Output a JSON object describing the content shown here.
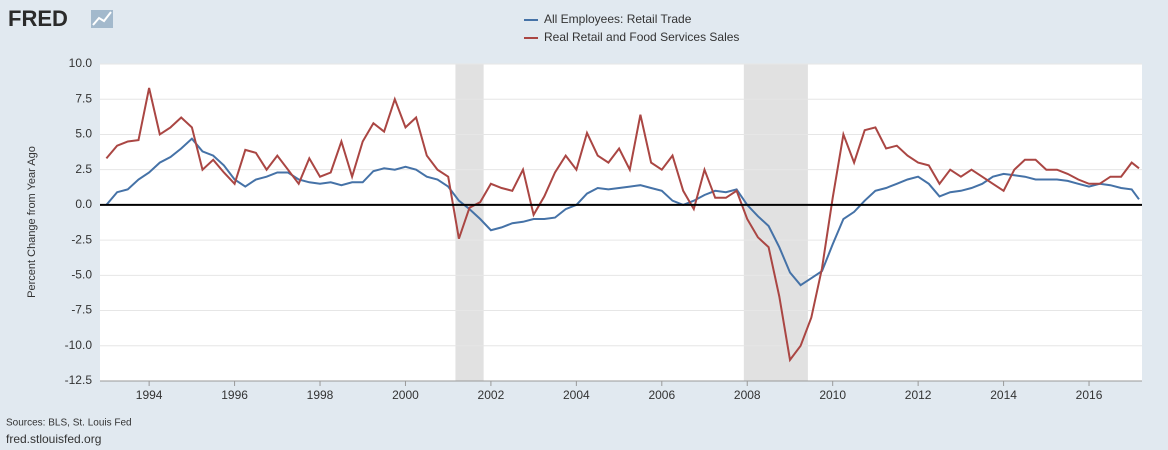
{
  "logo": "FRED",
  "chart_data": {
    "type": "line",
    "ylabel": "Percent Change from Year Ago",
    "source": "Sources: BLS, St. Louis Fed",
    "site": "fred.stlouisfed.org",
    "x": [
      1993,
      1993.25,
      1993.5,
      1993.75,
      1994,
      1994.25,
      1994.5,
      1994.75,
      1995,
      1995.25,
      1995.5,
      1995.75,
      1996,
      1996.25,
      1996.5,
      1996.75,
      1997,
      1997.25,
      1997.5,
      1997.75,
      1998,
      1998.25,
      1998.5,
      1998.75,
      1999,
      1999.25,
      1999.5,
      1999.75,
      2000,
      2000.25,
      2000.5,
      2000.75,
      2001,
      2001.25,
      2001.5,
      2001.75,
      2002,
      2002.25,
      2002.5,
      2002.75,
      2003,
      2003.25,
      2003.5,
      2003.75,
      2004,
      2004.25,
      2004.5,
      2004.75,
      2005,
      2005.25,
      2005.5,
      2005.75,
      2006,
      2006.25,
      2006.5,
      2006.75,
      2007,
      2007.25,
      2007.5,
      2007.75,
      2008,
      2008.25,
      2008.5,
      2008.75,
      2009,
      2009.25,
      2009.5,
      2009.75,
      2010,
      2010.25,
      2010.5,
      2010.75,
      2011,
      2011.25,
      2011.5,
      2011.75,
      2012,
      2012.25,
      2012.5,
      2012.75,
      2013,
      2013.25,
      2013.5,
      2013.75,
      2014,
      2014.25,
      2014.5,
      2014.75,
      2015,
      2015.25,
      2015.5,
      2015.75,
      2016,
      2016.25,
      2016.5,
      2016.75,
      2017,
      2017.17
    ],
    "series": [
      {
        "name": "All Employees: Retail Trade",
        "color": "#4572a7",
        "values": [
          0.0,
          0.9,
          1.1,
          1.8,
          2.3,
          3.0,
          3.4,
          4.0,
          4.7,
          3.8,
          3.5,
          2.8,
          1.8,
          1.3,
          1.8,
          2.0,
          2.3,
          2.3,
          1.8,
          1.6,
          1.5,
          1.6,
          1.4,
          1.6,
          1.6,
          2.4,
          2.6,
          2.5,
          2.7,
          2.5,
          2.0,
          1.8,
          1.3,
          0.3,
          -0.3,
          -1.0,
          -1.8,
          -1.6,
          -1.3,
          -1.2,
          -1.0,
          -1.0,
          -0.9,
          -0.3,
          0.0,
          0.8,
          1.2,
          1.1,
          1.2,
          1.3,
          1.4,
          1.2,
          1.0,
          0.3,
          0.0,
          0.3,
          0.7,
          1.0,
          0.9,
          1.1,
          0.0,
          -0.8,
          -1.5,
          -3.0,
          -4.8,
          -5.7,
          -5.2,
          -4.7,
          -2.8,
          -1.0,
          -0.5,
          0.3,
          1.0,
          1.2,
          1.5,
          1.8,
          2.0,
          1.5,
          0.6,
          0.9,
          1.0,
          1.2,
          1.5,
          2.0,
          2.2,
          2.1,
          2.0,
          1.8,
          1.8,
          1.8,
          1.7,
          1.5,
          1.3,
          1.5,
          1.4,
          1.2,
          1.1,
          0.4
        ]
      },
      {
        "name": "Real Retail and Food Services Sales",
        "color": "#aa4643",
        "values": [
          3.3,
          4.2,
          4.5,
          4.6,
          8.3,
          5.0,
          5.5,
          6.2,
          5.5,
          2.5,
          3.2,
          2.3,
          1.5,
          3.9,
          3.7,
          2.5,
          3.5,
          2.5,
          1.5,
          3.3,
          2.0,
          2.3,
          4.5,
          2.0,
          4.5,
          5.8,
          5.2,
          7.5,
          5.5,
          6.2,
          3.5,
          2.5,
          2.0,
          -2.4,
          -0.2,
          0.2,
          1.5,
          1.2,
          1.0,
          2.5,
          -0.7,
          0.6,
          2.3,
          3.5,
          2.5,
          5.1,
          3.5,
          3.0,
          4.0,
          2.5,
          6.4,
          3.0,
          2.5,
          3.5,
          1.0,
          -0.3,
          2.5,
          0.5,
          0.5,
          1.0,
          -1.0,
          -2.3,
          -3.0,
          -6.5,
          -11.0,
          -10.0,
          -8.0,
          -4.5,
          0.5,
          5.0,
          3.0,
          5.3,
          5.5,
          4.0,
          4.2,
          3.5,
          3.0,
          2.8,
          1.5,
          2.5,
          2.0,
          2.5,
          2.0,
          1.5,
          1.0,
          2.5,
          3.2,
          3.2,
          2.5,
          2.5,
          2.2,
          1.8,
          1.5,
          1.5,
          2.0,
          2.0,
          3.0,
          2.6
        ]
      }
    ],
    "recessions": [
      [
        2001.17,
        2001.83
      ],
      [
        2007.92,
        2009.42
      ]
    ],
    "recession_color": "#e1e1e1",
    "xlim": [
      1992.85,
      2017.24
    ],
    "xticks": [
      1994,
      1996,
      1998,
      2000,
      2002,
      2004,
      2006,
      2008,
      2010,
      2012,
      2014,
      2016
    ],
    "ylim": [
      -12.5,
      10
    ],
    "yticks": [
      {
        "value": -12.5,
        "label": "-12.5"
      },
      {
        "value": -10,
        "label": "-10.0"
      },
      {
        "value": -7.5,
        "label": "-7.5"
      },
      {
        "value": -5,
        "label": "-5.0"
      },
      {
        "value": -2.5,
        "label": "-2.5"
      },
      {
        "value": 0,
        "label": "0.0"
      },
      {
        "value": 2.5,
        "label": "2.5"
      },
      {
        "value": 5,
        "label": "5.0"
      },
      {
        "value": 7.5,
        "label": "7.5"
      },
      {
        "value": 10,
        "label": "10.0"
      }
    ],
    "grid": true
  }
}
